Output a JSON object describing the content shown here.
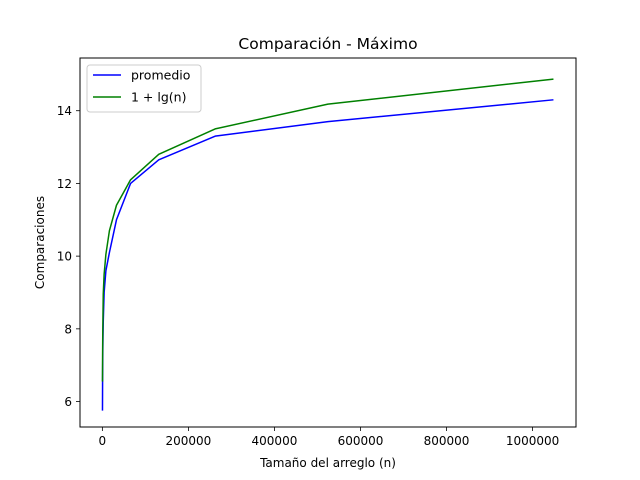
{
  "chart_data": {
    "type": "line",
    "title": "Comparación - Máximo",
    "xlabel": "Tamaño del arreglo (n)",
    "ylabel": "Comparaciones",
    "xlim": [
      -52000,
      1101000
    ],
    "ylim": [
      5.3,
      15.45
    ],
    "xticks": [
      0,
      200000,
      400000,
      600000,
      800000,
      1000000
    ],
    "xtick_labels": [
      "0",
      "200000",
      "400000",
      "600000",
      "800000",
      "1000000"
    ],
    "yticks": [
      6,
      8,
      10,
      12,
      14
    ],
    "ytick_labels": [
      "6",
      "8",
      "10",
      "12",
      "14"
    ],
    "grid": false,
    "legend_position": "upper-left",
    "series": [
      {
        "name": "promedio",
        "color": "#0000ff",
        "x": [
          256,
          512,
          1024,
          2048,
          4096,
          8192,
          16384,
          32768,
          65536,
          131072,
          262144,
          524288,
          1048576
        ],
        "y": [
          5.75,
          6.6,
          7.4,
          8.2,
          9.0,
          9.6,
          10.1,
          11.0,
          12.0,
          12.65,
          13.3,
          13.7,
          14.3
        ]
      },
      {
        "name": "1 + lg(n)",
        "color": "#008000",
        "x": [
          256,
          512,
          1024,
          2048,
          4096,
          8192,
          16384,
          32768,
          65536,
          131072,
          262144,
          524288,
          1048576
        ],
        "y": [
          6.55,
          7.25,
          8.0,
          8.95,
          9.5,
          10.05,
          10.7,
          11.4,
          12.1,
          12.8,
          13.5,
          14.18,
          14.87
        ]
      }
    ]
  }
}
